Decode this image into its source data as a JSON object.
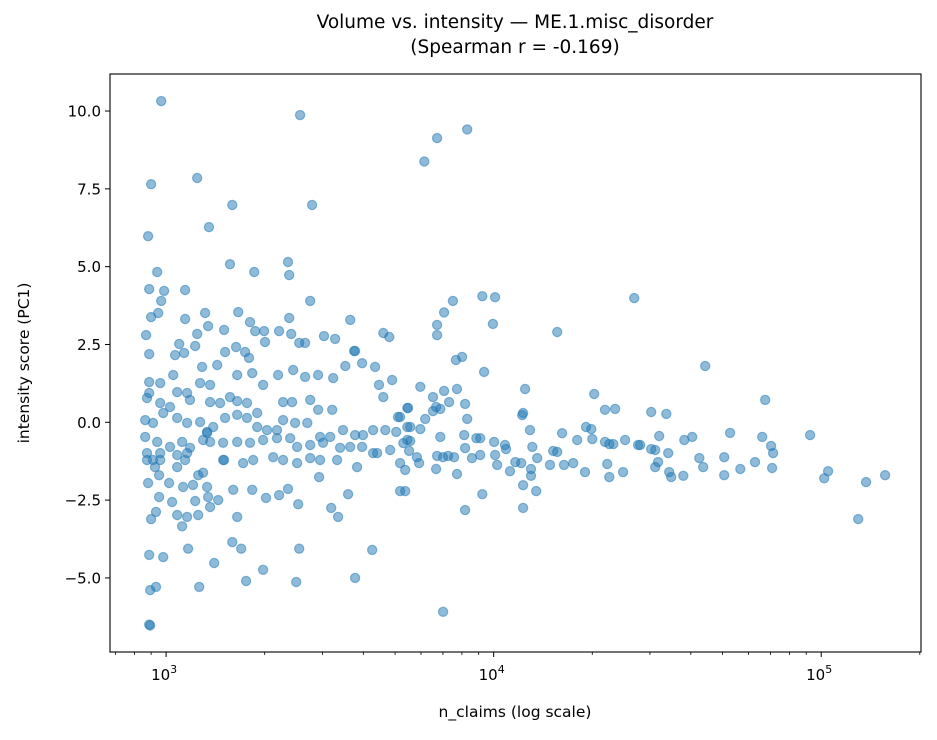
{
  "chart_data": {
    "type": "scatter",
    "title_line1": "Volume vs. intensity — ME.1.misc_disorder",
    "title_line2": "(Spearman r = -0.169)",
    "xlabel": "n_claims (log scale)",
    "ylabel": "intensity score (PC1)",
    "xscale": "log",
    "xlim": [
      674,
      201700
    ],
    "ylim": [
      -7.38,
      11.19
    ],
    "grid": false,
    "x_ticks": [
      {
        "value": 1000,
        "base": "10",
        "exp": "3"
      },
      {
        "value": 10000,
        "base": "10",
        "exp": "4"
      },
      {
        "value": 100000,
        "base": "10",
        "exp": "5"
      }
    ],
    "y_ticks": [
      {
        "value": -5,
        "label": "−5.0"
      },
      {
        "value": -2.5,
        "label": "−2.5"
      },
      {
        "value": 0,
        "label": "0.0"
      },
      {
        "value": 2.5,
        "label": "2.5"
      },
      {
        "value": 5,
        "label": "5.0"
      },
      {
        "value": 7.5,
        "label": "7.5"
      },
      {
        "value": 10,
        "label": "10.0"
      }
    ],
    "marker_color": "#1f77b4",
    "marker_alpha": 0.5,
    "points": [
      [
        966,
        10.32
      ],
      [
        2565,
        9.87
      ],
      [
        6720,
        9.13
      ],
      [
        8300,
        9.41
      ],
      [
        6140,
        8.38
      ],
      [
        1244,
        7.85
      ],
      [
        900,
        7.65
      ],
      [
        1592,
        6.98
      ],
      [
        2790,
        6.98
      ],
      [
        1352,
        6.27
      ],
      [
        881,
        5.98
      ],
      [
        939,
        4.83
      ],
      [
        1567,
        5.08
      ],
      [
        1857,
        4.83
      ],
      [
        2355,
        5.15
      ],
      [
        2376,
        4.73
      ],
      [
        888,
        4.28
      ],
      [
        986,
        4.22
      ],
      [
        1143,
        4.25
      ],
      [
        966,
        3.9
      ],
      [
        2754,
        3.9
      ],
      [
        7510,
        3.9
      ],
      [
        9230,
        4.05
      ],
      [
        10100,
        4.02
      ],
      [
        26850,
        3.99
      ],
      [
        946,
        3.51
      ],
      [
        900,
        3.38
      ],
      [
        1143,
        3.32
      ],
      [
        1315,
        3.51
      ],
      [
        1660,
        3.54
      ],
      [
        2376,
        3.35
      ],
      [
        1343,
        3.09
      ],
      [
        1803,
        3.22
      ],
      [
        1871,
        2.93
      ],
      [
        1991,
        2.93
      ],
      [
        2004,
        2.58
      ],
      [
        2213,
        2.93
      ],
      [
        2409,
        2.84
      ],
      [
        2548,
        2.55
      ],
      [
        2657,
        2.55
      ],
      [
        1503,
        2.97
      ],
      [
        1244,
        2.84
      ],
      [
        869,
        2.8
      ],
      [
        3648,
        3.29
      ],
      [
        3033,
        2.77
      ],
      [
        3280,
        2.68
      ],
      [
        4604,
        2.87
      ],
      [
        4800,
        2.74
      ],
      [
        3750,
        2.29
      ],
      [
        3775,
        2.29
      ],
      [
        1096,
        2.52
      ],
      [
        1227,
        2.45
      ],
      [
        1065,
        2.16
      ],
      [
        1135,
        2.23
      ],
      [
        888,
        2.19
      ],
      [
        1636,
        2.42
      ],
      [
        1514,
        2.26
      ],
      [
        1742,
        2.26
      ],
      [
        1791,
        2.07
      ],
      [
        7060,
        3.53
      ],
      [
        6720,
        3.13
      ],
      [
        6720,
        2.8
      ],
      [
        9950,
        3.16
      ],
      [
        15630,
        2.9
      ],
      [
        7670,
        2.0
      ],
      [
        8010,
        2.1
      ],
      [
        9350,
        1.62
      ],
      [
        5970,
        1.14
      ],
      [
        7060,
        1.01
      ],
      [
        7730,
        1.07
      ],
      [
        12470,
        1.07
      ],
      [
        20270,
        0.91
      ],
      [
        6530,
        0.81
      ],
      [
        7310,
        0.65
      ],
      [
        6870,
        0.43
      ],
      [
        6670,
        0.49
      ],
      [
        6530,
        0.36
      ],
      [
        8180,
        0.59
      ],
      [
        5480,
        0.46
      ],
      [
        5180,
        0.17
      ],
      [
        8300,
        0.11
      ],
      [
        6180,
        0.11
      ],
      [
        12220,
        0.23
      ],
      [
        12300,
        0.3
      ],
      [
        21880,
        0.4
      ],
      [
        23490,
        0.43
      ],
      [
        19140,
        -0.15
      ],
      [
        19860,
        -0.22
      ],
      [
        12910,
        -0.25
      ],
      [
        5450,
        -0.15
      ],
      [
        5970,
        -0.22
      ],
      [
        5560,
        -0.15
      ],
      [
        16180,
        -0.35
      ],
      [
        6870,
        -0.47
      ],
      [
        8130,
        -0.41
      ],
      [
        8850,
        -0.51
      ],
      [
        9100,
        -0.51
      ],
      [
        17990,
        -0.57
      ],
      [
        20000,
        -0.54
      ],
      [
        21880,
        -0.63
      ],
      [
        22540,
        -0.7
      ],
      [
        23190,
        -0.7
      ],
      [
        25190,
        -0.57
      ],
      [
        27610,
        -0.73
      ],
      [
        13120,
        -0.79
      ],
      [
        10030,
        -0.63
      ],
      [
        10830,
        -0.73
      ],
      [
        8180,
        -0.83
      ],
      [
        5560,
        -0.6
      ],
      [
        5300,
        -0.67
      ],
      [
        5520,
        -0.92
      ],
      [
        15200,
        -0.92
      ],
      [
        15630,
        -0.95
      ],
      [
        6720,
        -1.08
      ],
      [
        7010,
        -1.12
      ],
      [
        7260,
        -1.08
      ],
      [
        7570,
        -1.12
      ],
      [
        8590,
        -1.15
      ],
      [
        9100,
        -1.05
      ],
      [
        10100,
        -1.05
      ],
      [
        10910,
        -0.86
      ],
      [
        13580,
        -1.15
      ],
      [
        5830,
        -1.12
      ],
      [
        5920,
        -1.31
      ],
      [
        5180,
        -1.31
      ],
      [
        5370,
        -1.53
      ],
      [
        11640,
        -1.28
      ],
      [
        12140,
        -1.31
      ],
      [
        10250,
        -1.37
      ],
      [
        11220,
        -1.57
      ],
      [
        14860,
        -1.37
      ],
      [
        16400,
        -1.37
      ],
      [
        17490,
        -1.31
      ],
      [
        22220,
        -1.34
      ],
      [
        6670,
        -1.5
      ],
      [
        7730,
        -1.66
      ],
      [
        13000,
        -1.5
      ],
      [
        13000,
        -1.72
      ],
      [
        19010,
        -1.6
      ],
      [
        22540,
        -1.76
      ],
      [
        24840,
        -1.6
      ],
      [
        5180,
        -2.21
      ],
      [
        5370,
        -2.21
      ],
      [
        12300,
        -2.02
      ],
      [
        13490,
        -2.21
      ],
      [
        9230,
        -2.31
      ],
      [
        8180,
        -2.82
      ],
      [
        12300,
        -2.75
      ],
      [
        7010,
        -6.09
      ],
      [
        30270,
        0.33
      ],
      [
        33650,
        0.27
      ],
      [
        44250,
        1.81
      ],
      [
        67450,
        0.72
      ],
      [
        32020,
        -0.44
      ],
      [
        28010,
        -0.73
      ],
      [
        30270,
        -0.86
      ],
      [
        31140,
        -0.89
      ],
      [
        34120,
        -0.99
      ],
      [
        31770,
        -1.28
      ],
      [
        31140,
        -1.44
      ],
      [
        34360,
        -1.6
      ],
      [
        34840,
        -1.76
      ],
      [
        37930,
        -1.72
      ],
      [
        38190,
        -0.57
      ],
      [
        40370,
        -0.47
      ],
      [
        42460,
        -1.15
      ],
      [
        43630,
        -1.44
      ],
      [
        50580,
        -1.12
      ],
      [
        50580,
        -1.7
      ],
      [
        52720,
        -0.34
      ],
      [
        56620,
        -1.5
      ],
      [
        62810,
        -1.28
      ],
      [
        66070,
        -0.47
      ],
      [
        70310,
        -0.76
      ],
      [
        71290,
        -0.99
      ],
      [
        70800,
        -1.47
      ],
      [
        92470,
        -0.41
      ],
      [
        105000,
        -1.57
      ],
      [
        102100,
        -1.8
      ],
      [
        137100,
        -1.92
      ],
      [
        156700,
        -1.7
      ],
      [
        129700,
        -3.11
      ],
      [
        888,
        1.29
      ],
      [
        959,
        1.26
      ],
      [
        1051,
        1.52
      ],
      [
        1288,
        1.78
      ],
      [
        1432,
        1.84
      ],
      [
        1270,
        1.26
      ],
      [
        1362,
        1.2
      ],
      [
        1648,
        1.52
      ],
      [
        1832,
        1.58
      ],
      [
        1567,
        0.81
      ],
      [
        1159,
        0.94
      ],
      [
        1081,
        0.97
      ],
      [
        888,
        0.94
      ],
      [
        874,
        0.78
      ],
      [
        959,
        0.62
      ],
      [
        1028,
        0.49
      ],
      [
        1183,
        0.72
      ],
      [
        1362,
        0.65
      ],
      [
        1462,
        0.62
      ],
      [
        1648,
        0.68
      ],
      [
        1766,
        0.62
      ],
      [
        1897,
        0.3
      ],
      [
        2276,
        0.65
      ],
      [
        2425,
        0.65
      ],
      [
        2754,
        0.72
      ],
      [
        2911,
        0.4
      ],
      [
        3213,
        0.4
      ],
      [
        1977,
        1.2
      ],
      [
        2198,
        1.52
      ],
      [
        2443,
        1.68
      ],
      [
        2657,
        1.46
      ],
      [
        2911,
        1.52
      ],
      [
        3236,
        1.42
      ],
      [
        3525,
        1.81
      ],
      [
        3966,
        1.9
      ],
      [
        4345,
        1.78
      ],
      [
        4467,
        1.2
      ],
      [
        4604,
        0.81
      ],
      [
        4898,
        1.36
      ],
      [
        5105,
        0.17
      ],
      [
        5450,
        0.46
      ],
      [
        863,
        0.07
      ],
      [
        912,
        -0.02
      ],
      [
        980,
        0.3
      ],
      [
        1081,
        0.14
      ],
      [
        1159,
        -0.02
      ],
      [
        1270,
        0.01
      ],
      [
        1334,
        -0.31
      ],
      [
        1392,
        -0.15
      ],
      [
        1514,
        0.14
      ],
      [
        1648,
        0.24
      ],
      [
        1766,
        0.14
      ],
      [
        1897,
        -0.15
      ],
      [
        2032,
        -0.25
      ],
      [
        2181,
        -0.25
      ],
      [
        2276,
        0.07
      ],
      [
        2477,
        -0.02
      ],
      [
        2698,
        -0.02
      ],
      [
        2952,
        -0.47
      ],
      [
        3170,
        -0.47
      ],
      [
        3468,
        -0.25
      ],
      [
        3775,
        -0.41
      ],
      [
        3990,
        -0.41
      ],
      [
        4285,
        -0.25
      ],
      [
        4667,
        -0.25
      ],
      [
        5040,
        -0.31
      ],
      [
        5450,
        -0.57
      ],
      [
        863,
        -0.47
      ],
      [
        939,
        -0.63
      ],
      [
        1028,
        -0.79
      ],
      [
        1119,
        -0.63
      ],
      [
        1183,
        -0.82
      ],
      [
        1297,
        -0.57
      ],
      [
        1334,
        -0.34
      ],
      [
        1362,
        -0.63
      ],
      [
        1493,
        -0.66
      ],
      [
        1648,
        -0.63
      ],
      [
        1803,
        -0.66
      ],
      [
        1977,
        -0.57
      ],
      [
        2181,
        -0.51
      ],
      [
        2393,
        -0.51
      ],
      [
        2512,
        -0.79
      ],
      [
        2754,
        -0.73
      ],
      [
        3013,
        -0.66
      ],
      [
        3398,
        -0.82
      ],
      [
        3648,
        -0.79
      ],
      [
        3966,
        -0.79
      ],
      [
        4406,
        -0.99
      ],
      [
        4831,
        -0.89
      ],
      [
        874,
        -0.99
      ],
      [
        959,
        -0.99
      ],
      [
        874,
        -1.21
      ],
      [
        912,
        -1.21
      ],
      [
        959,
        -1.21
      ],
      [
        1081,
        -1.05
      ],
      [
        1159,
        -0.99
      ],
      [
        1143,
        -1.21
      ],
      [
        1493,
        -1.21
      ],
      [
        1718,
        -1.31
      ],
      [
        1845,
        -1.21
      ],
      [
        2123,
        -1.12
      ],
      [
        2276,
        -1.21
      ],
      [
        2512,
        -1.31
      ],
      [
        2754,
        -1.15
      ],
      [
        2952,
        -1.21
      ],
      [
        3326,
        -1.21
      ],
      [
        3830,
        -1.44
      ],
      [
        4285,
        -0.99
      ],
      [
        925,
        -1.44
      ],
      [
        1081,
        -1.44
      ],
      [
        952,
        -1.7
      ],
      [
        881,
        -1.95
      ],
      [
        1021,
        -1.95
      ],
      [
        1127,
        -2.08
      ],
      [
        1208,
        -2.01
      ],
      [
        1253,
        -1.7
      ],
      [
        1297,
        -1.62
      ],
      [
        1334,
        -2.08
      ],
      [
        1442,
        -2.5
      ],
      [
        1343,
        -2.4
      ],
      [
        1227,
        -2.53
      ],
      [
        952,
        -2.4
      ],
      [
        1043,
        -2.56
      ],
      [
        1362,
        -2.72
      ],
      [
        1253,
        -2.98
      ],
      [
        1159,
        -3.04
      ],
      [
        1081,
        -2.98
      ],
      [
        1119,
        -3.34
      ],
      [
        931,
        -2.88
      ],
      [
        900,
        -3.11
      ],
      [
        1503,
        -1.21
      ],
      [
        1603,
        -2.17
      ],
      [
        1648,
        -3.04
      ],
      [
        1832,
        -2.17
      ],
      [
        2018,
        -2.43
      ],
      [
        2213,
        -2.34
      ],
      [
        2355,
        -2.14
      ],
      [
        2530,
        -2.63
      ],
      [
        3192,
        -2.75
      ],
      [
        3350,
        -3.04
      ],
      [
        3595,
        -2.31
      ],
      [
        2931,
        -1.76
      ],
      [
        888,
        -4.26
      ],
      [
        980,
        -4.33
      ],
      [
        1167,
        -4.06
      ],
      [
        1402,
        -4.52
      ],
      [
        1592,
        -3.85
      ],
      [
        1695,
        -4.06
      ],
      [
        2548,
        -4.06
      ],
      [
        4258,
        -4.1
      ],
      [
        1977,
        -4.74
      ],
      [
        1755,
        -5.1
      ],
      [
        2495,
        -5.13
      ],
      [
        3775,
        -5.0
      ],
      [
        894,
        -5.39
      ],
      [
        931,
        -5.29
      ],
      [
        1262,
        -5.29
      ],
      [
        888,
        -6.5
      ],
      [
        894,
        -6.53
      ]
    ]
  }
}
